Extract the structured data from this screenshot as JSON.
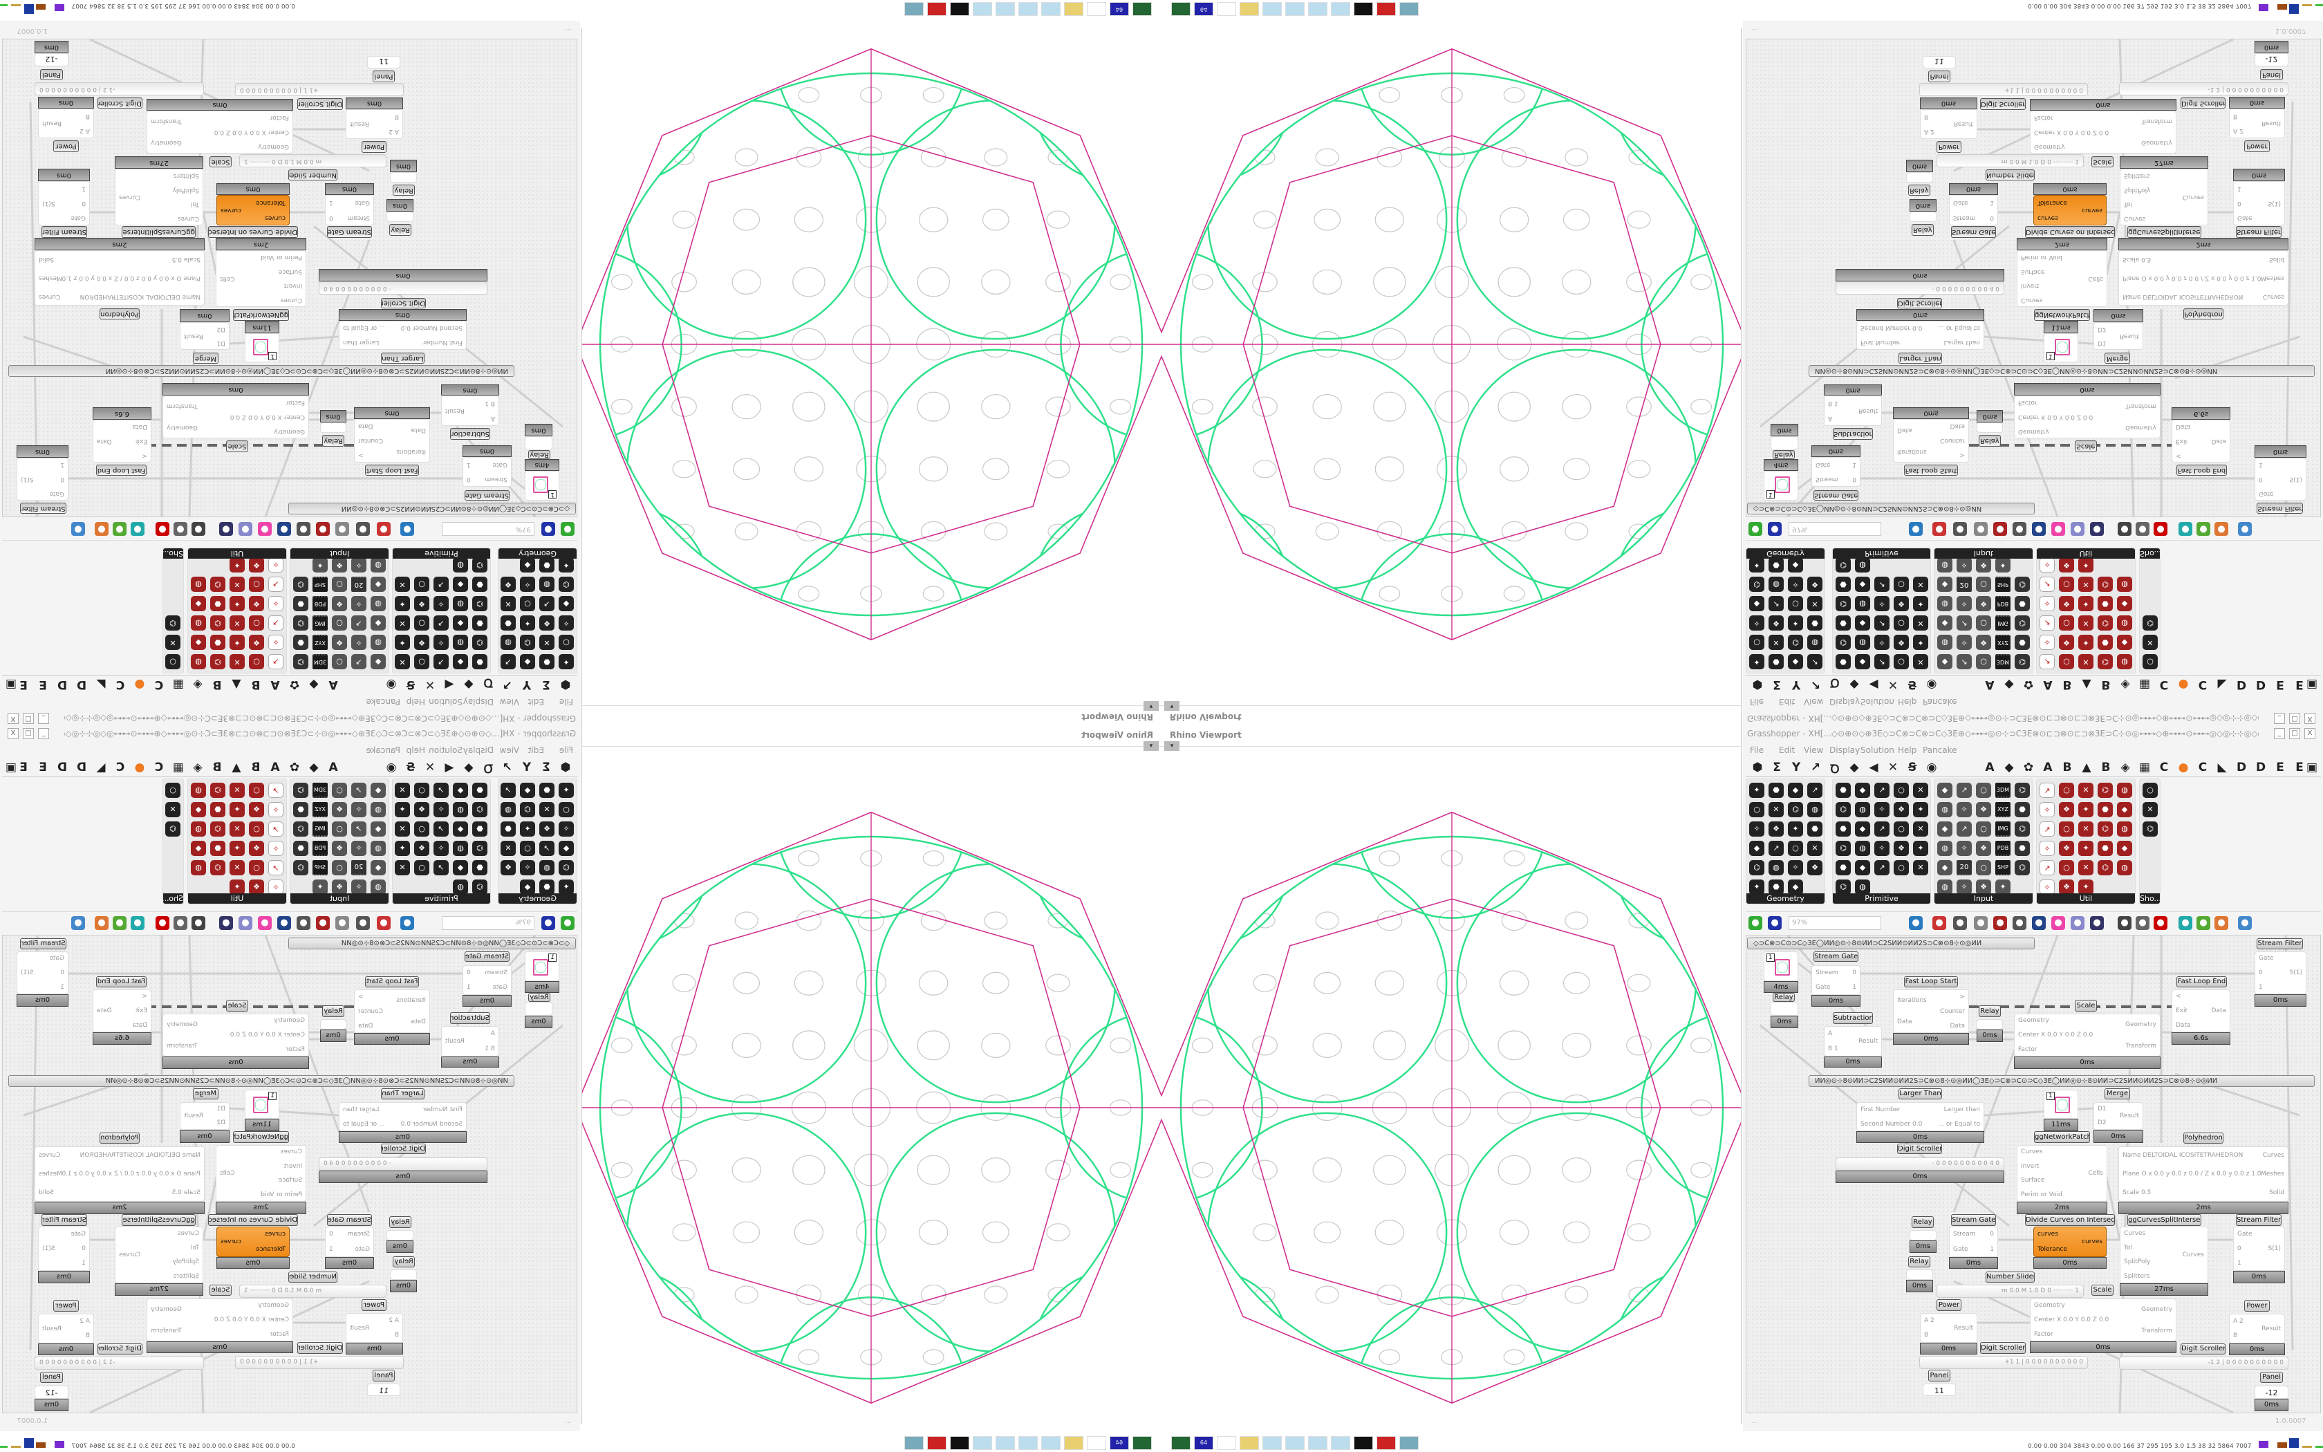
{
  "viewport": {
    "title": "Rhino Viewport",
    "dropdown_icon": "chevron-down-icon"
  },
  "grasshopper": {
    "title": "Grasshopper - XH[...◇⊙⊕⊙◇⊕3E◇⊃C⊗⊃C⊗⊃C◇3E⊕◇⊶⊷◎⊙⊹⊃C3E⊗⊙⊏⊐⊗⊙⊏⊐⊗3E⊃C⊹⊙◎⊶⊷◇⊕⊶⊷⊙⊶⊷◎◇◎⊹⊹◎◇◎⊶⊷⊙⊶⊷⊕◇⊶⊷◎⊙⊹⊃C3E⊗⊙⊏⊐⊗⊙...",
    "window_buttons": [
      "_",
      "□",
      "X"
    ],
    "menu": [
      "File",
      "Edit",
      "View",
      "Display",
      "Solution",
      "Help",
      "Pancake"
    ],
    "tabs": [
      "⬢",
      "Σ",
      "Y",
      "↗",
      "Ꝺ",
      "◆",
      "◀",
      "✕",
      "Ꞩ",
      "◉",
      "A",
      "◆",
      "✿",
      "A",
      "B",
      "▲",
      "B",
      "◈",
      "▦",
      "C",
      "●",
      "C",
      "◣",
      "D",
      "D",
      "E",
      "E",
      "▣"
    ],
    "panels": [
      {
        "label": "Geometry",
        "icons": 23
      },
      {
        "label": "Primitive",
        "icons": 27
      },
      {
        "label": "Input",
        "icons": 29
      },
      {
        "label": "Util",
        "icons": 28
      },
      {
        "label": "Sho..."
      }
    ],
    "input_icon_labels": [
      "3DM",
      "XYZ",
      "IMG",
      "PDB",
      "SHP",
      "20"
    ],
    "toolbar": {
      "zoom": "97%",
      "icons": [
        "new-file-icon",
        "save-icon",
        "zoom-extents-icon",
        "eye-icon",
        "sketch-icon",
        "bake-icon",
        "email-icon",
        "gha-icon",
        "export-icon",
        "search-icon",
        "package-icon",
        "balloon-icon",
        "wires-icon",
        "shape-icon",
        "link-icon",
        "red-gem-icon",
        "teal-icon",
        "green-icon",
        "sphere-icon",
        "blue-sphere-icon"
      ]
    },
    "group_bar_1": "◇⊃C⊗⊃C⊙⊃C◇3E◯ИИ◎⊙⊹8⊙ИИ⊃C2SИИ⊙ИИ2S⊃C⊗⊙8⊹⊙◎ИИ",
    "group_bar_2": "ИИ◎⊙⊹8⊙ИИ⊃C2SИИ⊙ИИ2S⊃C⊗⊙8⊹⊙◎ИИ◯3E◇⊃C⊗⊃C⊙⊃C◇3E◯ИИ◎⊙⊹8⊙ИИ⊃C2SИИ⊙ИИ2S⊃C⊗⊙8⊹⊙◎ИИ",
    "components": [
      {
        "label": "",
        "inputs": [],
        "outputs": [],
        "timing": "4ms",
        "value": "1"
      },
      {
        "label": "Relay",
        "inputs": [],
        "outputs": [],
        "timing": "0ms"
      },
      {
        "label": "Stream Gate",
        "inputs": [
          "Stream",
          "Gate"
        ],
        "outputs": [
          "0",
          "1"
        ],
        "timing": "0ms"
      },
      {
        "label": "Fast Loop Start",
        "inputs": [
          "Iterations",
          "Data"
        ],
        "outputs": [
          ">",
          "Counter",
          "Data"
        ],
        "timing": "0ms"
      },
      {
        "label": "Relay",
        "inputs": [],
        "outputs": [],
        "timing": "0ms"
      },
      {
        "label": "Subtraction",
        "inputs": [
          "A",
          "B 1"
        ],
        "outputs": [
          "Result"
        ],
        "timing": "0ms"
      },
      {
        "label": "Scale",
        "inputs": [
          "Geometry",
          "Center X 0.0 Y 0.0 Z 0.0",
          "Factor"
        ],
        "outputs": [
          "Geometry",
          "Transform"
        ],
        "timing": "0ms"
      },
      {
        "label": "Fast Loop End",
        "inputs": [
          "<",
          "Exit",
          "Data"
        ],
        "outputs": [
          "Data"
        ],
        "timing": "6.6s"
      },
      {
        "label": "Stream Filter",
        "inputs": [
          "Gate",
          "0",
          "1"
        ],
        "outputs": [
          "S(1)"
        ],
        "timing": "0ms"
      },
      {
        "label": "Larger Than",
        "inputs": [
          "First Number",
          "Second Number 0.0"
        ],
        "outputs": [
          "Larger than",
          "... or Equal to"
        ],
        "timing": "0ms"
      },
      {
        "label": "Digit Scroller",
        "slider": "· 0 0 0 0 0 0 0 0 0 4 0",
        "timing": "0ms"
      },
      {
        "label": "ggNetworkPatch",
        "inputs": [],
        "outputs": [],
        "timing": "11ms",
        "value": "1"
      },
      {
        "label": "Merge",
        "inputs": [
          "D1",
          "D2"
        ],
        "outputs": [
          "Result"
        ],
        "timing": "0ms"
      },
      {
        "label": "",
        "inputs": [
          "Curves",
          "Invert",
          "Surface",
          "Perim or Void"
        ],
        "outputs": [
          "Cells"
        ],
        "timing": "2ms"
      },
      {
        "label": "Polyhedron",
        "inputs": [
          "Name DELTOIDAL ICOSITETRAHEDRON",
          "Plane  O x 0.0 y 0.0 z 0.0 / Z x 0.0 y 0.0 z 1.0",
          "Scale 0.5"
        ],
        "outputs": [
          "Curves",
          "Meshes",
          "Solid"
        ],
        "timing": "2ms"
      },
      {
        "label": "Relay",
        "inputs": [],
        "outputs": [],
        "timing": "0ms"
      },
      {
        "label": "Relay",
        "inputs": [],
        "outputs": [],
        "timing": "0ms"
      },
      {
        "label": "Stream Gate",
        "inputs": [
          "Stream",
          "Gate"
        ],
        "outputs": [
          "0",
          "1"
        ],
        "timing": "0ms"
      },
      {
        "label": "Divide Curves on Intersects",
        "inputs": [
          "curves",
          "Tolerance"
        ],
        "outputs": [
          "curves"
        ],
        "timing": "0ms"
      },
      {
        "label": "ggCurvesSplitIntersect",
        "inputs": [
          "Curves",
          "Tol",
          "SplitPoly",
          "Splitters"
        ],
        "outputs": [
          "Curves"
        ],
        "timing": "27ms"
      },
      {
        "label": "Stream Filter",
        "inputs": [
          "Gate",
          "0",
          "1"
        ],
        "outputs": [
          "S(1)"
        ],
        "timing": "0ms"
      },
      {
        "label": "Number Slider",
        "slider": "m 0.0  M 1.0  D 0  ·········· 1"
      },
      {
        "label": "Scale",
        "inputs": [
          "Geometry",
          "Center X 0.0 Y 0.0 Z 0.0",
          "Factor"
        ],
        "outputs": [
          "Geometry",
          "Transform"
        ],
        "timing": "0ms"
      },
      {
        "label": "Power",
        "inputs": [
          "A 2",
          "B"
        ],
        "outputs": [
          "Result"
        ],
        "timing": "0ms"
      },
      {
        "label": "Digit Scroller",
        "slider": "+1 1 | 0 0 0 0 0 0 0 0 0 0"
      },
      {
        "label": "Digit Scroller",
        "slider": "-1 2 | 0 0 0 0 0 0 0 0 0 0"
      },
      {
        "label": "Power",
        "inputs": [
          "A 2",
          "B"
        ],
        "outputs": [
          "Result"
        ],
        "timing": "0ms"
      },
      {
        "label": "Panel",
        "value": "11"
      },
      {
        "label": "Panel",
        "value": "-12",
        "timing": "0ms"
      }
    ],
    "status_left": "...",
    "status_right": "1.0.0007"
  },
  "taskbar": {
    "icons": [
      "device-icon",
      "floppy-64-icon",
      "blank-icon",
      "folder-icon",
      "notepad-icon",
      "notepad-icon",
      "notepad-icon",
      "notepad-icon",
      "rhino-icon",
      "bug-icon",
      "calculator-icon"
    ],
    "floppy_label": "64"
  },
  "stats": "0.00 0.00 304 3843 0.00 0.00 166 37 295 195 3.0 1.5 38 32 5864 7007",
  "colors": {
    "accent_orange": "#ef8a16",
    "curve_green": "#2fe08a",
    "polyhedron_magenta": "#d0308f",
    "pattern_gray": "#c8c8c8"
  }
}
